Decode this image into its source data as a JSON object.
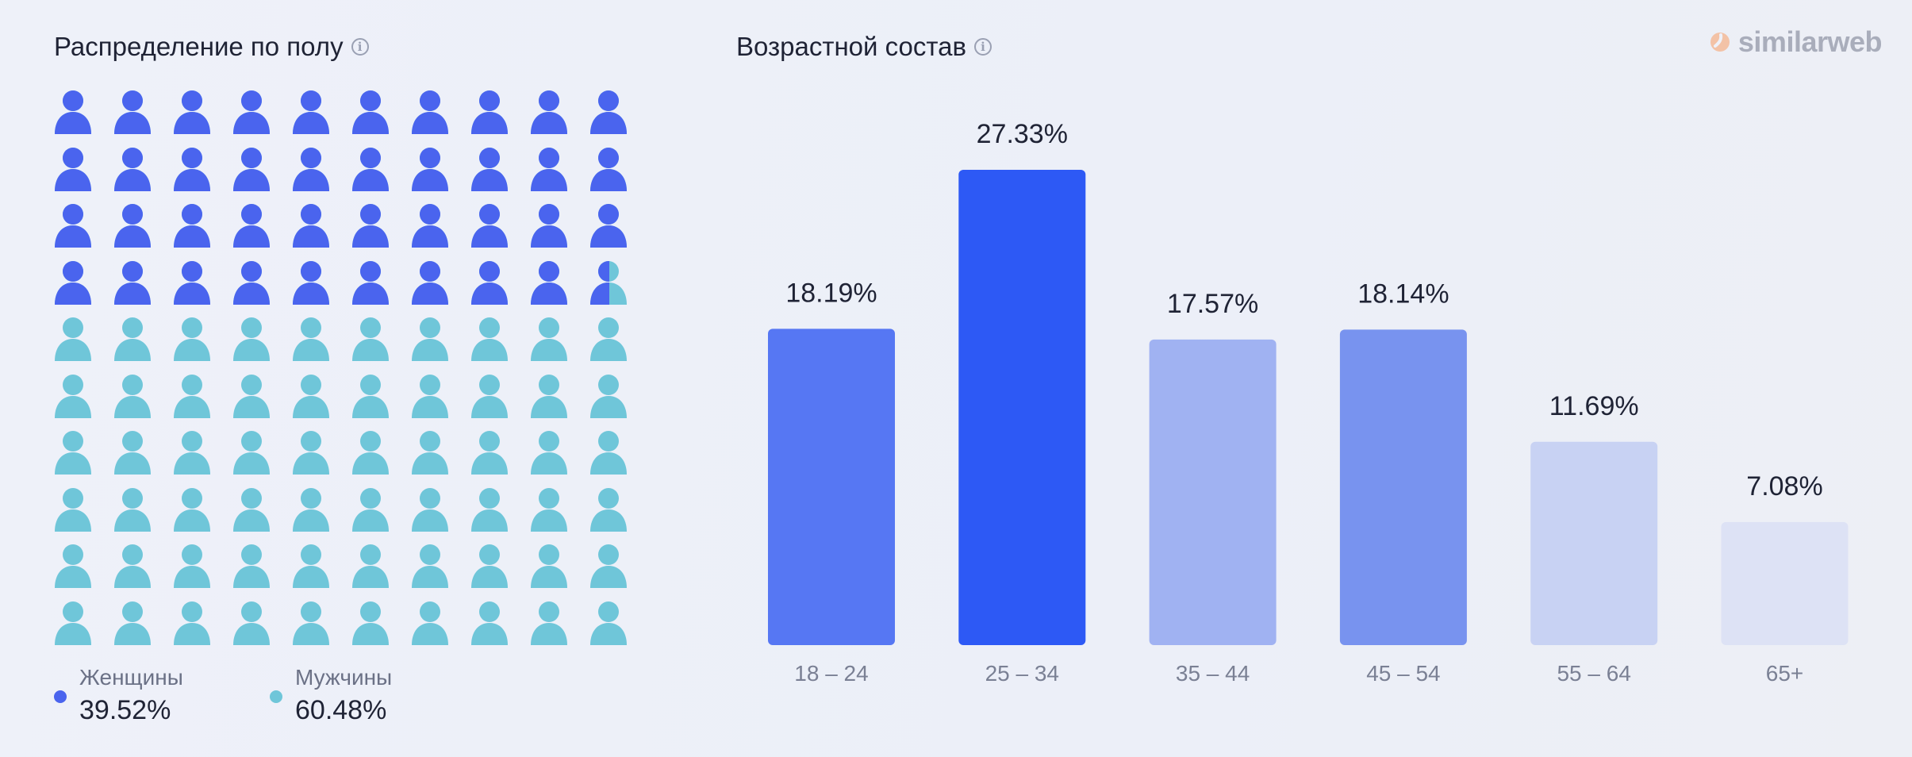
{
  "gender": {
    "title": "Распределение по полу",
    "info_icon": "info-icon",
    "female": {
      "label": "Женщины",
      "value": "39.52%",
      "share": 0.3952,
      "color": "#4a64ee"
    },
    "male": {
      "label": "Мужчины",
      "value": "60.48%",
      "share": 0.6048,
      "color": "#6fc6d9"
    },
    "person_icon": "person-icon",
    "grid": {
      "rows": 10,
      "cols": 10
    }
  },
  "age": {
    "title": "Возрастной состав",
    "info_icon": "info-icon"
  },
  "brand": {
    "name": "similarweb",
    "icon": "similarweb-logo-icon"
  },
  "chart_data": {
    "type": "bar",
    "title": "Возрастной состав",
    "categories": [
      "18 – 24",
      "25 – 34",
      "35 – 44",
      "45 – 54",
      "55 – 64",
      "65+"
    ],
    "values": [
      18.19,
      27.33,
      17.57,
      18.14,
      11.69,
      7.08
    ],
    "value_labels": [
      "18.19%",
      "27.33%",
      "17.57%",
      "18.14%",
      "11.69%",
      "7.08%"
    ],
    "colors": [
      "#5677f3",
      "#2d59f5",
      "#a0b2f2",
      "#7893ef",
      "#c8d2f3",
      "#dde2f5"
    ],
    "xlabel": "",
    "ylabel": "",
    "grid": false
  }
}
